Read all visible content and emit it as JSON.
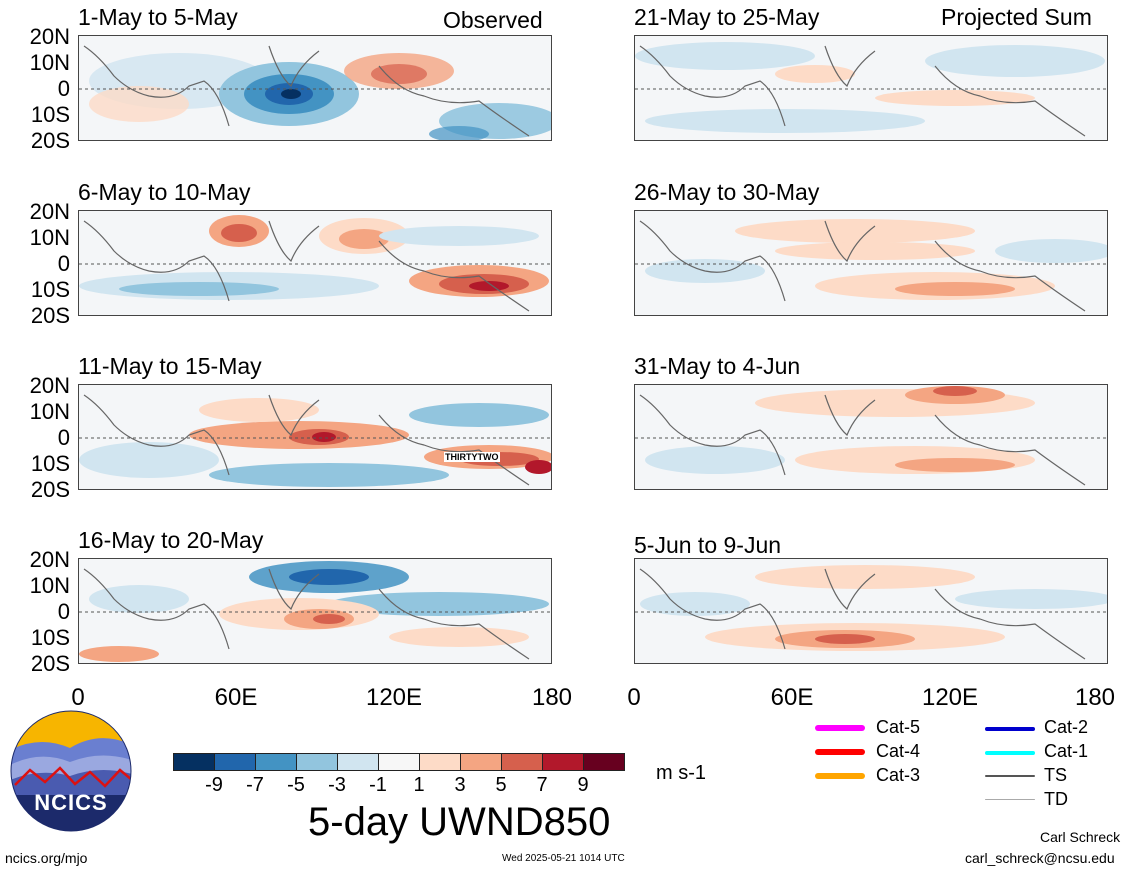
{
  "labels": {
    "observed": "Observed",
    "projected": "Projected Sum"
  },
  "panels": [
    {
      "title": "1-May to 5-May"
    },
    {
      "title": "6-May to 10-May"
    },
    {
      "title": "11-May to 15-May"
    },
    {
      "title": "16-May to 20-May"
    },
    {
      "title": "21-May to 25-May"
    },
    {
      "title": "26-May to 30-May"
    },
    {
      "title": "31-May to 4-Jun"
    },
    {
      "title": "5-Jun to 9-Jun"
    }
  ],
  "lat_labels": [
    "20N",
    "10N",
    "0",
    "10S",
    "20S"
  ],
  "lon_labels": [
    "0",
    "60E",
    "120E",
    "180"
  ],
  "storm_label": "THIRTYTWO",
  "colorbar": {
    "colors": [
      "#053061",
      "#2166ac",
      "#4393c3",
      "#92c5de",
      "#d1e5f0",
      "#f7f7f7",
      "#fddbc7",
      "#f4a582",
      "#d6604d",
      "#b2182b",
      "#67001f",
      "#4b0014"
    ],
    "ticks": [
      "-9",
      "-7",
      "-5",
      "-3",
      "-1",
      "1",
      "3",
      "5",
      "7",
      "9"
    ],
    "units": "m s-1"
  },
  "main_title": "5-day UWND850",
  "legend": [
    {
      "label": "Cat-5",
      "color": "#ff00ff"
    },
    {
      "label": "Cat-4",
      "color": "#ff0000"
    },
    {
      "label": "Cat-3",
      "color": "#ffa500"
    },
    {
      "label": "Cat-2",
      "color": "#0000cd"
    },
    {
      "label": "Cat-1",
      "color": "#00ffff"
    },
    {
      "label": "TS",
      "color": "#555555"
    },
    {
      "label": "TD",
      "color": "#aaaaaa"
    }
  ],
  "logo_text": "NCICS",
  "footer": {
    "url": "ncics.org/mjo",
    "timestamp": "Wed 2025-05-21 1014 UTC",
    "author": "Carl Schreck",
    "email": "carl_schreck@ncsu.edu"
  }
}
